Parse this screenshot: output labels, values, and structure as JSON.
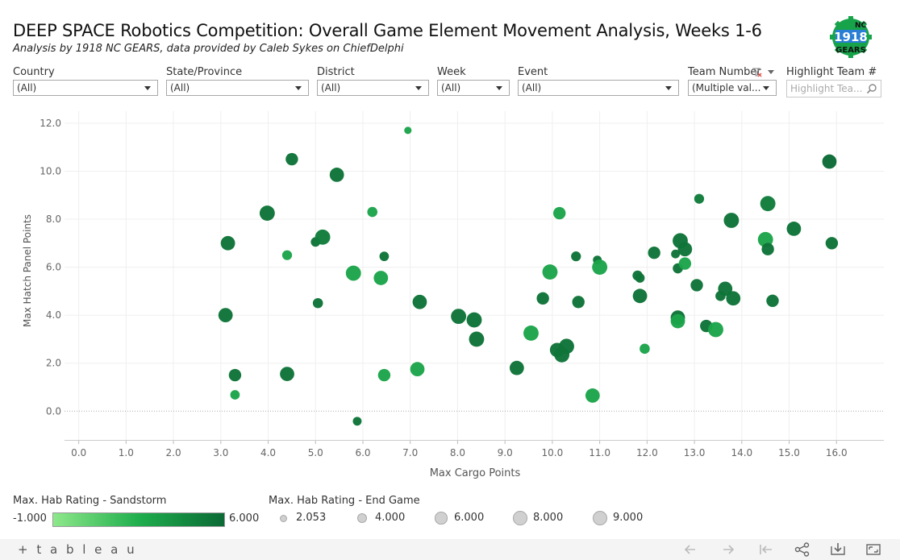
{
  "header": {
    "title": "DEEP SPACE Robotics Competition:  Overall Game Element Movement Analysis, Weeks 1-6",
    "subtitle": "Analysis by 1918 NC GEARS, data provided by Caleb Sykes on ChiefDelphi",
    "logo_text_top": "NC",
    "logo_text_mid": "1918",
    "logo_text_bottom": "GEARS"
  },
  "filters": [
    {
      "label": "Country",
      "value": "(All)"
    },
    {
      "label": "State/Province",
      "value": "(All)"
    },
    {
      "label": "District",
      "value": "(All)"
    },
    {
      "label": "Week",
      "value": "(All)"
    },
    {
      "label": "Event",
      "value": "(All)"
    },
    {
      "label": "Team Number",
      "value": "(Multiple val..."
    }
  ],
  "highlight": {
    "label": "Highlight Team #",
    "placeholder": "Highlight Tea..."
  },
  "legend": {
    "color_title": "Max. Hab Rating - Sandstorm",
    "color_min": "-1.000",
    "color_max": "6.000",
    "size_title": "Max. Hab Rating - End Game",
    "sizes": [
      {
        "value": 2.053,
        "label": "2.053"
      },
      {
        "value": 4.0,
        "label": "4.000"
      },
      {
        "value": 6.0,
        "label": "6.000"
      },
      {
        "value": 8.0,
        "label": "8.000"
      },
      {
        "value": 9.0,
        "label": "9.000"
      }
    ]
  },
  "colors": {
    "ramp_low": "#8ee88a",
    "ramp_mid": "#1fae4d",
    "ramp_high": "#0b6a35",
    "circle_fill": "#d0d0d0",
    "axis_text": "#666666"
  },
  "footer": {
    "brand": "+ t a b l e a u"
  },
  "chart_data": {
    "type": "scatter",
    "title": "",
    "xlabel": "Max Cargo Points",
    "ylabel": "Max Hatch Panel Points",
    "xlim": [
      -0.3,
      17.0
    ],
    "ylim": [
      -1.2,
      12.5
    ],
    "xticks": [
      "0.0",
      "1.0",
      "2.0",
      "3.0",
      "4.0",
      "5.0",
      "6.0",
      "7.0",
      "8.0",
      "9.0",
      "10.0",
      "11.0",
      "12.0",
      "13.0",
      "14.0",
      "15.0",
      "16.0"
    ],
    "yticks": [
      "0.0",
      "2.0",
      "4.0",
      "6.0",
      "8.0",
      "10.0",
      "12.0"
    ],
    "grid": true,
    "zero_line": true,
    "color_by": "Max. Hab Rating - Sandstorm",
    "size_by": "Max. Hab Rating - End Game",
    "points": [
      {
        "x": 6.95,
        "y": 11.7,
        "c": 3.0,
        "s": 2.1
      },
      {
        "x": 4.5,
        "y": 10.5,
        "c": 5.5,
        "s": 6.0
      },
      {
        "x": 5.45,
        "y": 9.85,
        "c": 5.5,
        "s": 8.0
      },
      {
        "x": 15.85,
        "y": 10.4,
        "c": 6.0,
        "s": 8.0
      },
      {
        "x": 13.1,
        "y": 8.85,
        "c": 5.0,
        "s": 3.8
      },
      {
        "x": 3.98,
        "y": 8.25,
        "c": 5.5,
        "s": 9.0
      },
      {
        "x": 6.2,
        "y": 8.3,
        "c": 3.0,
        "s": 4.0
      },
      {
        "x": 10.15,
        "y": 8.25,
        "c": 3.0,
        "s": 6.0
      },
      {
        "x": 14.55,
        "y": 8.65,
        "c": 5.0,
        "s": 9.0
      },
      {
        "x": 13.78,
        "y": 7.95,
        "c": 5.5,
        "s": 9.0
      },
      {
        "x": 15.1,
        "y": 7.6,
        "c": 5.5,
        "s": 8.0
      },
      {
        "x": 3.15,
        "y": 7.0,
        "c": 5.5,
        "s": 8.0
      },
      {
        "x": 5.0,
        "y": 7.05,
        "c": 5.5,
        "s": 3.5
      },
      {
        "x": 5.15,
        "y": 7.25,
        "c": 5.0,
        "s": 9.0
      },
      {
        "x": 4.4,
        "y": 6.5,
        "c": 3.0,
        "s": 3.8
      },
      {
        "x": 6.45,
        "y": 6.45,
        "c": 5.5,
        "s": 3.5
      },
      {
        "x": 5.8,
        "y": 5.75,
        "c": 3.0,
        "s": 9.0
      },
      {
        "x": 6.38,
        "y": 5.55,
        "c": 3.0,
        "s": 8.0
      },
      {
        "x": 12.7,
        "y": 7.1,
        "c": 5.5,
        "s": 9.0
      },
      {
        "x": 12.8,
        "y": 6.75,
        "c": 5.5,
        "s": 8.0
      },
      {
        "x": 12.6,
        "y": 6.55,
        "c": 5.5,
        "s": 3.0
      },
      {
        "x": 12.15,
        "y": 6.6,
        "c": 5.5,
        "s": 6.0
      },
      {
        "x": 14.5,
        "y": 7.15,
        "c": 3.0,
        "s": 9.0
      },
      {
        "x": 14.55,
        "y": 6.75,
        "c": 5.5,
        "s": 6.0
      },
      {
        "x": 15.9,
        "y": 7.0,
        "c": 5.5,
        "s": 6.0
      },
      {
        "x": 12.65,
        "y": 5.95,
        "c": 5.5,
        "s": 4.0
      },
      {
        "x": 12.8,
        "y": 6.15,
        "c": 3.0,
        "s": 6.0
      },
      {
        "x": 10.5,
        "y": 6.45,
        "c": 5.5,
        "s": 3.8
      },
      {
        "x": 10.95,
        "y": 6.3,
        "c": 5.5,
        "s": 3.0
      },
      {
        "x": 11.0,
        "y": 6.0,
        "c": 3.0,
        "s": 9.0
      },
      {
        "x": 9.95,
        "y": 5.8,
        "c": 3.0,
        "s": 9.0
      },
      {
        "x": 11.8,
        "y": 5.65,
        "c": 5.5,
        "s": 4.0
      },
      {
        "x": 11.85,
        "y": 5.55,
        "c": 5.5,
        "s": 3.5
      },
      {
        "x": 13.05,
        "y": 5.25,
        "c": 5.5,
        "s": 6.0
      },
      {
        "x": 13.65,
        "y": 5.1,
        "c": 5.5,
        "s": 8.0
      },
      {
        "x": 13.55,
        "y": 4.8,
        "c": 5.5,
        "s": 4.0
      },
      {
        "x": 13.82,
        "y": 4.7,
        "c": 5.5,
        "s": 8.0
      },
      {
        "x": 14.65,
        "y": 4.6,
        "c": 5.5,
        "s": 6.0
      },
      {
        "x": 11.85,
        "y": 4.8,
        "c": 5.5,
        "s": 8.0
      },
      {
        "x": 9.8,
        "y": 4.7,
        "c": 5.5,
        "s": 6.0
      },
      {
        "x": 10.55,
        "y": 4.55,
        "c": 5.5,
        "s": 6.0
      },
      {
        "x": 7.2,
        "y": 4.55,
        "c": 5.5,
        "s": 8.0
      },
      {
        "x": 5.05,
        "y": 4.5,
        "c": 5.5,
        "s": 4.0
      },
      {
        "x": 3.1,
        "y": 4.0,
        "c": 5.5,
        "s": 8.0
      },
      {
        "x": 8.02,
        "y": 3.95,
        "c": 5.5,
        "s": 9.0
      },
      {
        "x": 8.35,
        "y": 3.8,
        "c": 5.5,
        "s": 9.0
      },
      {
        "x": 8.4,
        "y": 3.0,
        "c": 5.5,
        "s": 9.0
      },
      {
        "x": 12.65,
        "y": 3.9,
        "c": 5.5,
        "s": 8.0
      },
      {
        "x": 12.65,
        "y": 3.75,
        "c": 3.0,
        "s": 8.0
      },
      {
        "x": 13.25,
        "y": 3.55,
        "c": 5.5,
        "s": 6.0
      },
      {
        "x": 13.45,
        "y": 3.4,
        "c": 3.0,
        "s": 9.0
      },
      {
        "x": 9.55,
        "y": 3.25,
        "c": 3.0,
        "s": 9.0
      },
      {
        "x": 10.3,
        "y": 2.7,
        "c": 5.5,
        "s": 9.0
      },
      {
        "x": 10.1,
        "y": 2.55,
        "c": 5.5,
        "s": 8.0
      },
      {
        "x": 10.2,
        "y": 2.35,
        "c": 5.5,
        "s": 9.0
      },
      {
        "x": 11.95,
        "y": 2.6,
        "c": 3.0,
        "s": 4.0
      },
      {
        "x": 9.25,
        "y": 1.8,
        "c": 5.5,
        "s": 8.0
      },
      {
        "x": 7.15,
        "y": 1.75,
        "c": 3.0,
        "s": 8.0
      },
      {
        "x": 3.3,
        "y": 1.5,
        "c": 5.5,
        "s": 6.0
      },
      {
        "x": 4.4,
        "y": 1.55,
        "c": 5.5,
        "s": 8.0
      },
      {
        "x": 6.45,
        "y": 1.5,
        "c": 3.0,
        "s": 6.0
      },
      {
        "x": 3.3,
        "y": 0.68,
        "c": 3.0,
        "s": 3.5
      },
      {
        "x": 10.85,
        "y": 0.65,
        "c": 3.0,
        "s": 8.0
      },
      {
        "x": 5.88,
        "y": -0.42,
        "c": 5.5,
        "s": 3.0
      }
    ]
  }
}
